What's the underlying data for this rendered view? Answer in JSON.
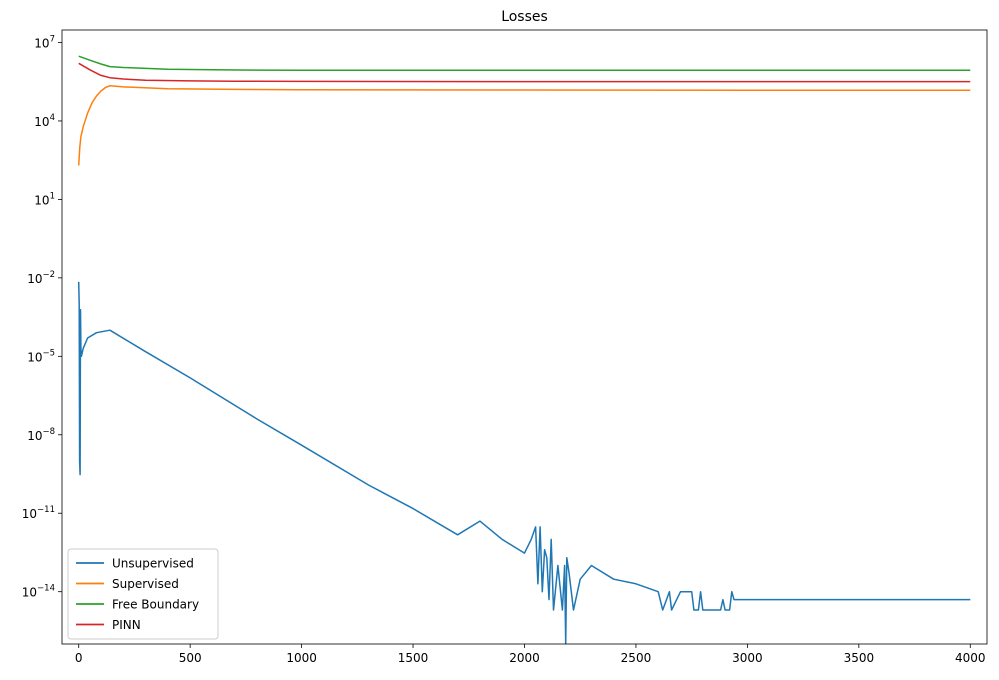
{
  "chart_data": {
    "type": "line",
    "title": "Losses",
    "xlabel": "",
    "ylabel": "",
    "yscale": "log",
    "xlim": [
      -75,
      4075
    ],
    "ylim": [
      1e-16,
      30000000.0
    ],
    "x_ticks": [
      0,
      500,
      1000,
      1500,
      2000,
      2500,
      3000,
      3500,
      4000
    ],
    "y_ticks": [
      {
        "value": 1e-14,
        "base": "10",
        "exp": "−14"
      },
      {
        "value": 1e-11,
        "base": "10",
        "exp": "−11"
      },
      {
        "value": 1e-08,
        "base": "10",
        "exp": "−8"
      },
      {
        "value": 1e-05,
        "base": "10",
        "exp": "−5"
      },
      {
        "value": 0.01,
        "base": "10",
        "exp": "−2"
      },
      {
        "value": 10,
        "base": "10",
        "exp": "1"
      },
      {
        "value": 10000.0,
        "base": "10",
        "exp": "4"
      },
      {
        "value": 10000000.0,
        "base": "10",
        "exp": "7"
      }
    ],
    "grid": false,
    "legend_position": "lower-left",
    "series": [
      {
        "name": "Unsupervised",
        "color": "#1f77b4",
        "x": [
          0,
          2,
          4,
          6,
          8,
          10,
          12,
          20,
          40,
          80,
          140,
          300,
          500,
          800,
          1000,
          1300,
          1500,
          1700,
          1800,
          1900,
          2000,
          2030,
          2050,
          2060,
          2070,
          2080,
          2090,
          2100,
          2110,
          2120,
          2130,
          2150,
          2170,
          2180,
          2185,
          2190,
          2200,
          2220,
          2250,
          2300,
          2400,
          2500,
          2600,
          2620,
          2650,
          2660,
          2700,
          2750,
          2760,
          2780,
          2790,
          2800,
          2810,
          2850,
          2880,
          2890,
          2900,
          2920,
          2930,
          2940,
          2950,
          3000,
          3500,
          4000
        ],
        "y": [
          0.007,
          0.001,
          1e-09,
          3e-10,
          0.0006,
          2e-05,
          1e-05,
          2e-05,
          5e-05,
          8e-05,
          0.0001,
          1.5e-05,
          1.5e-06,
          4e-08,
          4e-09,
          1.2e-10,
          1.5e-11,
          1.5e-12,
          5e-12,
          1e-12,
          3e-13,
          1e-12,
          3e-12,
          2e-14,
          3e-12,
          1e-14,
          4e-13,
          2e-13,
          5e-15,
          1e-12,
          2e-15,
          1e-13,
          2e-15,
          1e-13,
          1e-16,
          2e-13,
          5e-14,
          2e-15,
          3e-14,
          1e-13,
          3e-14,
          2e-14,
          1e-14,
          2e-15,
          1e-14,
          2e-15,
          1e-14,
          1e-14,
          2e-15,
          2e-15,
          1e-14,
          2e-15,
          2e-15,
          2e-15,
          2e-15,
          5e-15,
          2e-15,
          2e-15,
          1e-14,
          5e-15,
          5e-15,
          5e-15,
          5e-15,
          5e-15
        ]
      },
      {
        "name": "Supervised",
        "color": "#ff7f0e",
        "x": [
          0,
          5,
          10,
          20,
          40,
          60,
          80,
          100,
          120,
          140,
          200,
          400,
          700,
          1000,
          2000,
          3000,
          4000
        ],
        "y": [
          200,
          1000,
          2500,
          6000,
          20000,
          50000,
          90000,
          140000,
          190000,
          220000,
          200000,
          170000,
          160000,
          155000,
          152000,
          150000,
          150000
        ]
      },
      {
        "name": "Free Boundary",
        "color": "#2ca02c",
        "x": [
          0,
          50,
          100,
          140,
          200,
          400,
          600,
          800,
          1000,
          2000,
          3000,
          4000
        ],
        "y": [
          3000000,
          2100000,
          1500000,
          1200000,
          1100000,
          950000,
          900000,
          880000,
          870000,
          860000,
          860000,
          860000
        ]
      },
      {
        "name": "PINN",
        "color": "#d62728",
        "x": [
          0,
          50,
          100,
          140,
          200,
          300,
          500,
          700,
          1000,
          2000,
          3000,
          4000
        ],
        "y": [
          1600000,
          900000,
          550000,
          450000,
          400000,
          360000,
          340000,
          330000,
          325000,
          320000,
          320000,
          320000
        ]
      }
    ]
  }
}
